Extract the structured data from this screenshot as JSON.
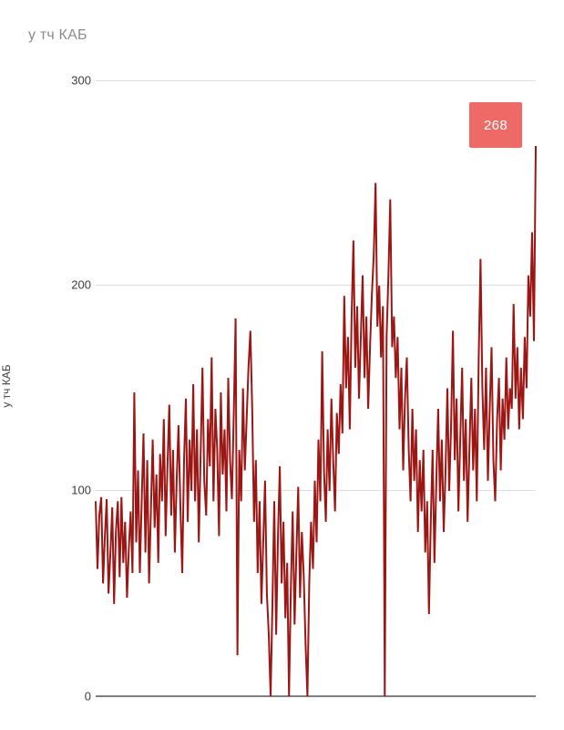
{
  "page": {
    "title": "у тч КАБ"
  },
  "chart_data": {
    "type": "line",
    "title": "у тч КАБ",
    "xlabel": "",
    "ylabel": "у тч КАБ",
    "ylim": [
      0,
      300
    ],
    "yticks": [
      0,
      100,
      200,
      300
    ],
    "x_ticks": [],
    "grid": "horizontal",
    "legend_position": "none",
    "line_color": "#9c1614",
    "grid_color": "#dedede",
    "axis_color": "#7f7f7f",
    "tick_label_color": "#3d3d3d",
    "annotation": {
      "label": "268",
      "bg_color": "#ee6a66",
      "text_color": "#ffffff"
    },
    "n_points": 240,
    "values": [
      95,
      62,
      88,
      97,
      55,
      78,
      96,
      50,
      70,
      92,
      45,
      80,
      95,
      58,
      97,
      65,
      85,
      48,
      72,
      90,
      60,
      148,
      75,
      110,
      60,
      95,
      128,
      70,
      115,
      55,
      90,
      125,
      82,
      108,
      65,
      118,
      95,
      135,
      78,
      112,
      142,
      88,
      120,
      70,
      105,
      132,
      92,
      60,
      115,
      145,
      85,
      125,
      100,
      152,
      95,
      130,
      75,
      118,
      160,
      105,
      88,
      135,
      112,
      165,
      95,
      140,
      120,
      78,
      148,
      108,
      130,
      90,
      155,
      115,
      96,
      138,
      184,
      20,
      120,
      95,
      150,
      110,
      135,
      160,
      178,
      140,
      85,
      115,
      60,
      95,
      45,
      75,
      105,
      50,
      30,
      0,
      45,
      95,
      30,
      78,
      112,
      55,
      85,
      38,
      65,
      0,
      52,
      90,
      35,
      70,
      102,
      48,
      80,
      58,
      25,
      0,
      55,
      85,
      62,
      105,
      75,
      125,
      95,
      168,
      110,
      85,
      130,
      100,
      145,
      115,
      90,
      138,
      118,
      152,
      128,
      195,
      150,
      175,
      130,
      185,
      222,
      160,
      190,
      145,
      175,
      205,
      155,
      185,
      140,
      170,
      195,
      215,
      250,
      180,
      200,
      165,
      190,
      0,
      175,
      205,
      242,
      170,
      185,
      155,
      175,
      130,
      160,
      110,
      145,
      165,
      120,
      95,
      140,
      105,
      130,
      80,
      115,
      90,
      120,
      70,
      95,
      40,
      85,
      120,
      65,
      105,
      140,
      95,
      125,
      80,
      110,
      150,
      100,
      130,
      178,
      115,
      145,
      90,
      125,
      160,
      105,
      135,
      85,
      120,
      155,
      110,
      140,
      95,
      165,
      213,
      150,
      120,
      160,
      105,
      140,
      170,
      115,
      95,
      135,
      155,
      110,
      145,
      125,
      165,
      130,
      150,
      140,
      191,
      145,
      170,
      130,
      160,
      135,
      175,
      150,
      205,
      185,
      226,
      173,
      268
    ]
  }
}
